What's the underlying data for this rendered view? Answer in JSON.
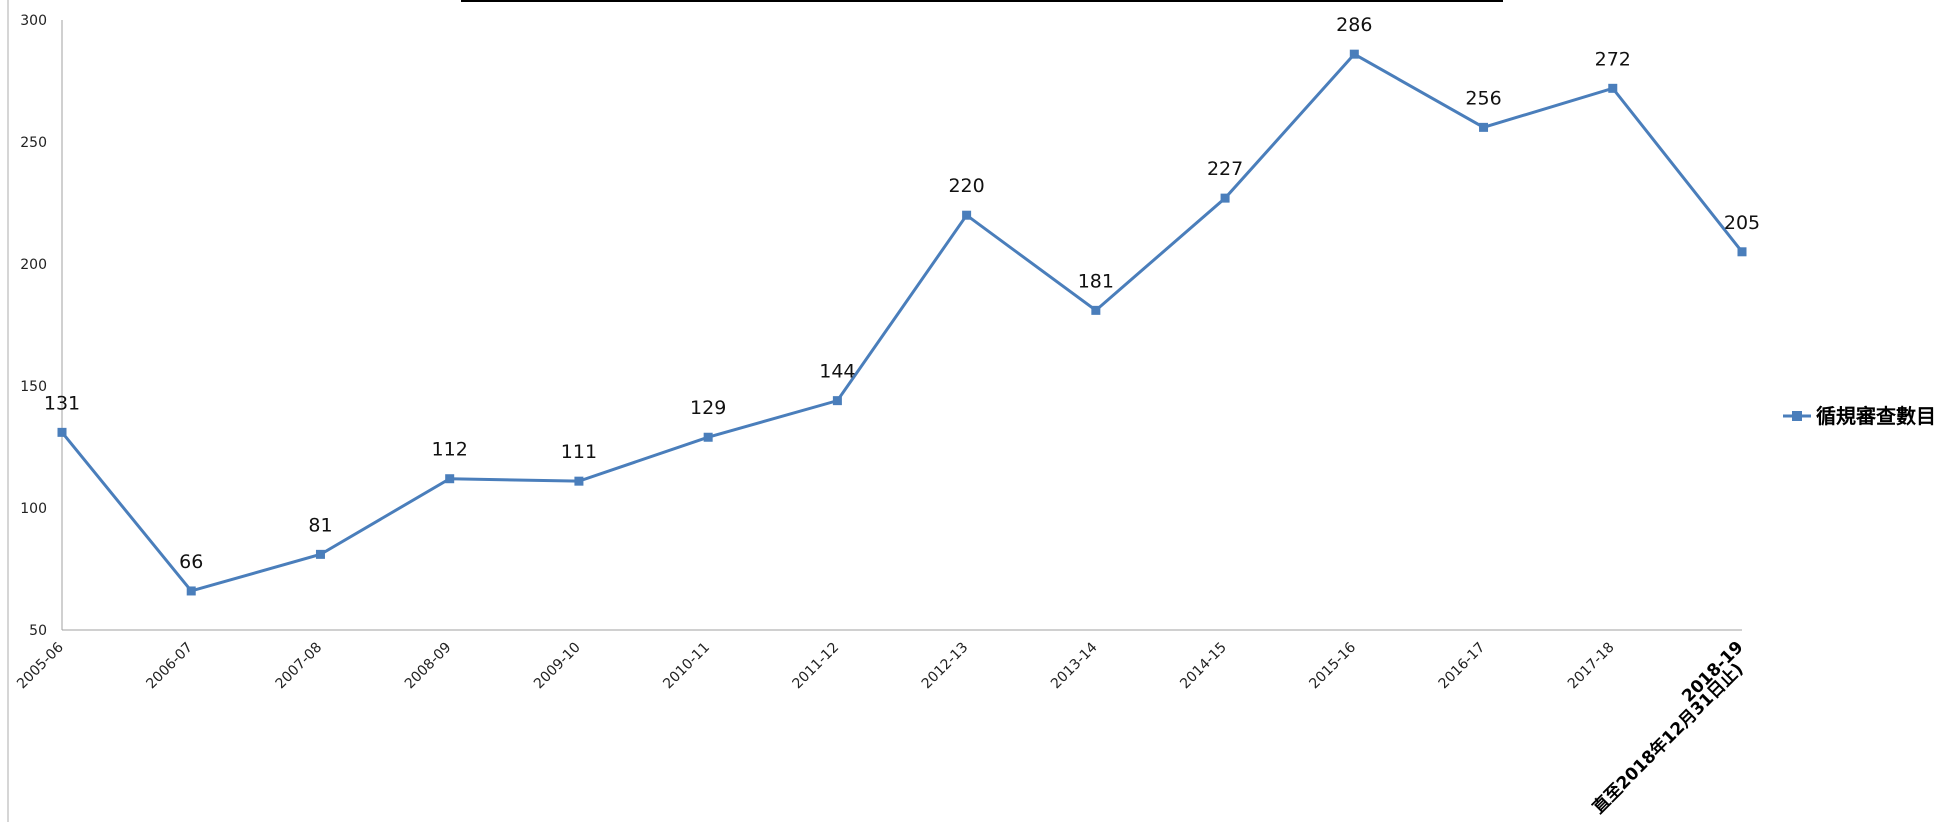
{
  "chart_data": {
    "type": "line",
    "categories": [
      "2005-06",
      "2006-07",
      "2007-08",
      "2008-09",
      "2009-10",
      "2010-11",
      "2011-12",
      "2012-13",
      "2013-14",
      "2014-15",
      "2015-16",
      "2016-17",
      "2017-18",
      "2018-19"
    ],
    "last_category_note": "直至2018年12月31日止)",
    "series": [
      {
        "name": "循規審查數目",
        "values": [
          131,
          66,
          81,
          112,
          111,
          129,
          144,
          220,
          181,
          227,
          286,
          256,
          272,
          205
        ]
      }
    ],
    "yticks": [
      50,
      100,
      150,
      200,
      250,
      300
    ],
    "ylim": [
      50,
      300
    ],
    "legend_position": "right",
    "grid": false,
    "colors": {
      "line": "#4a7ebb",
      "marker": "#4a7ebb",
      "axis": "#a0a0a0"
    }
  }
}
